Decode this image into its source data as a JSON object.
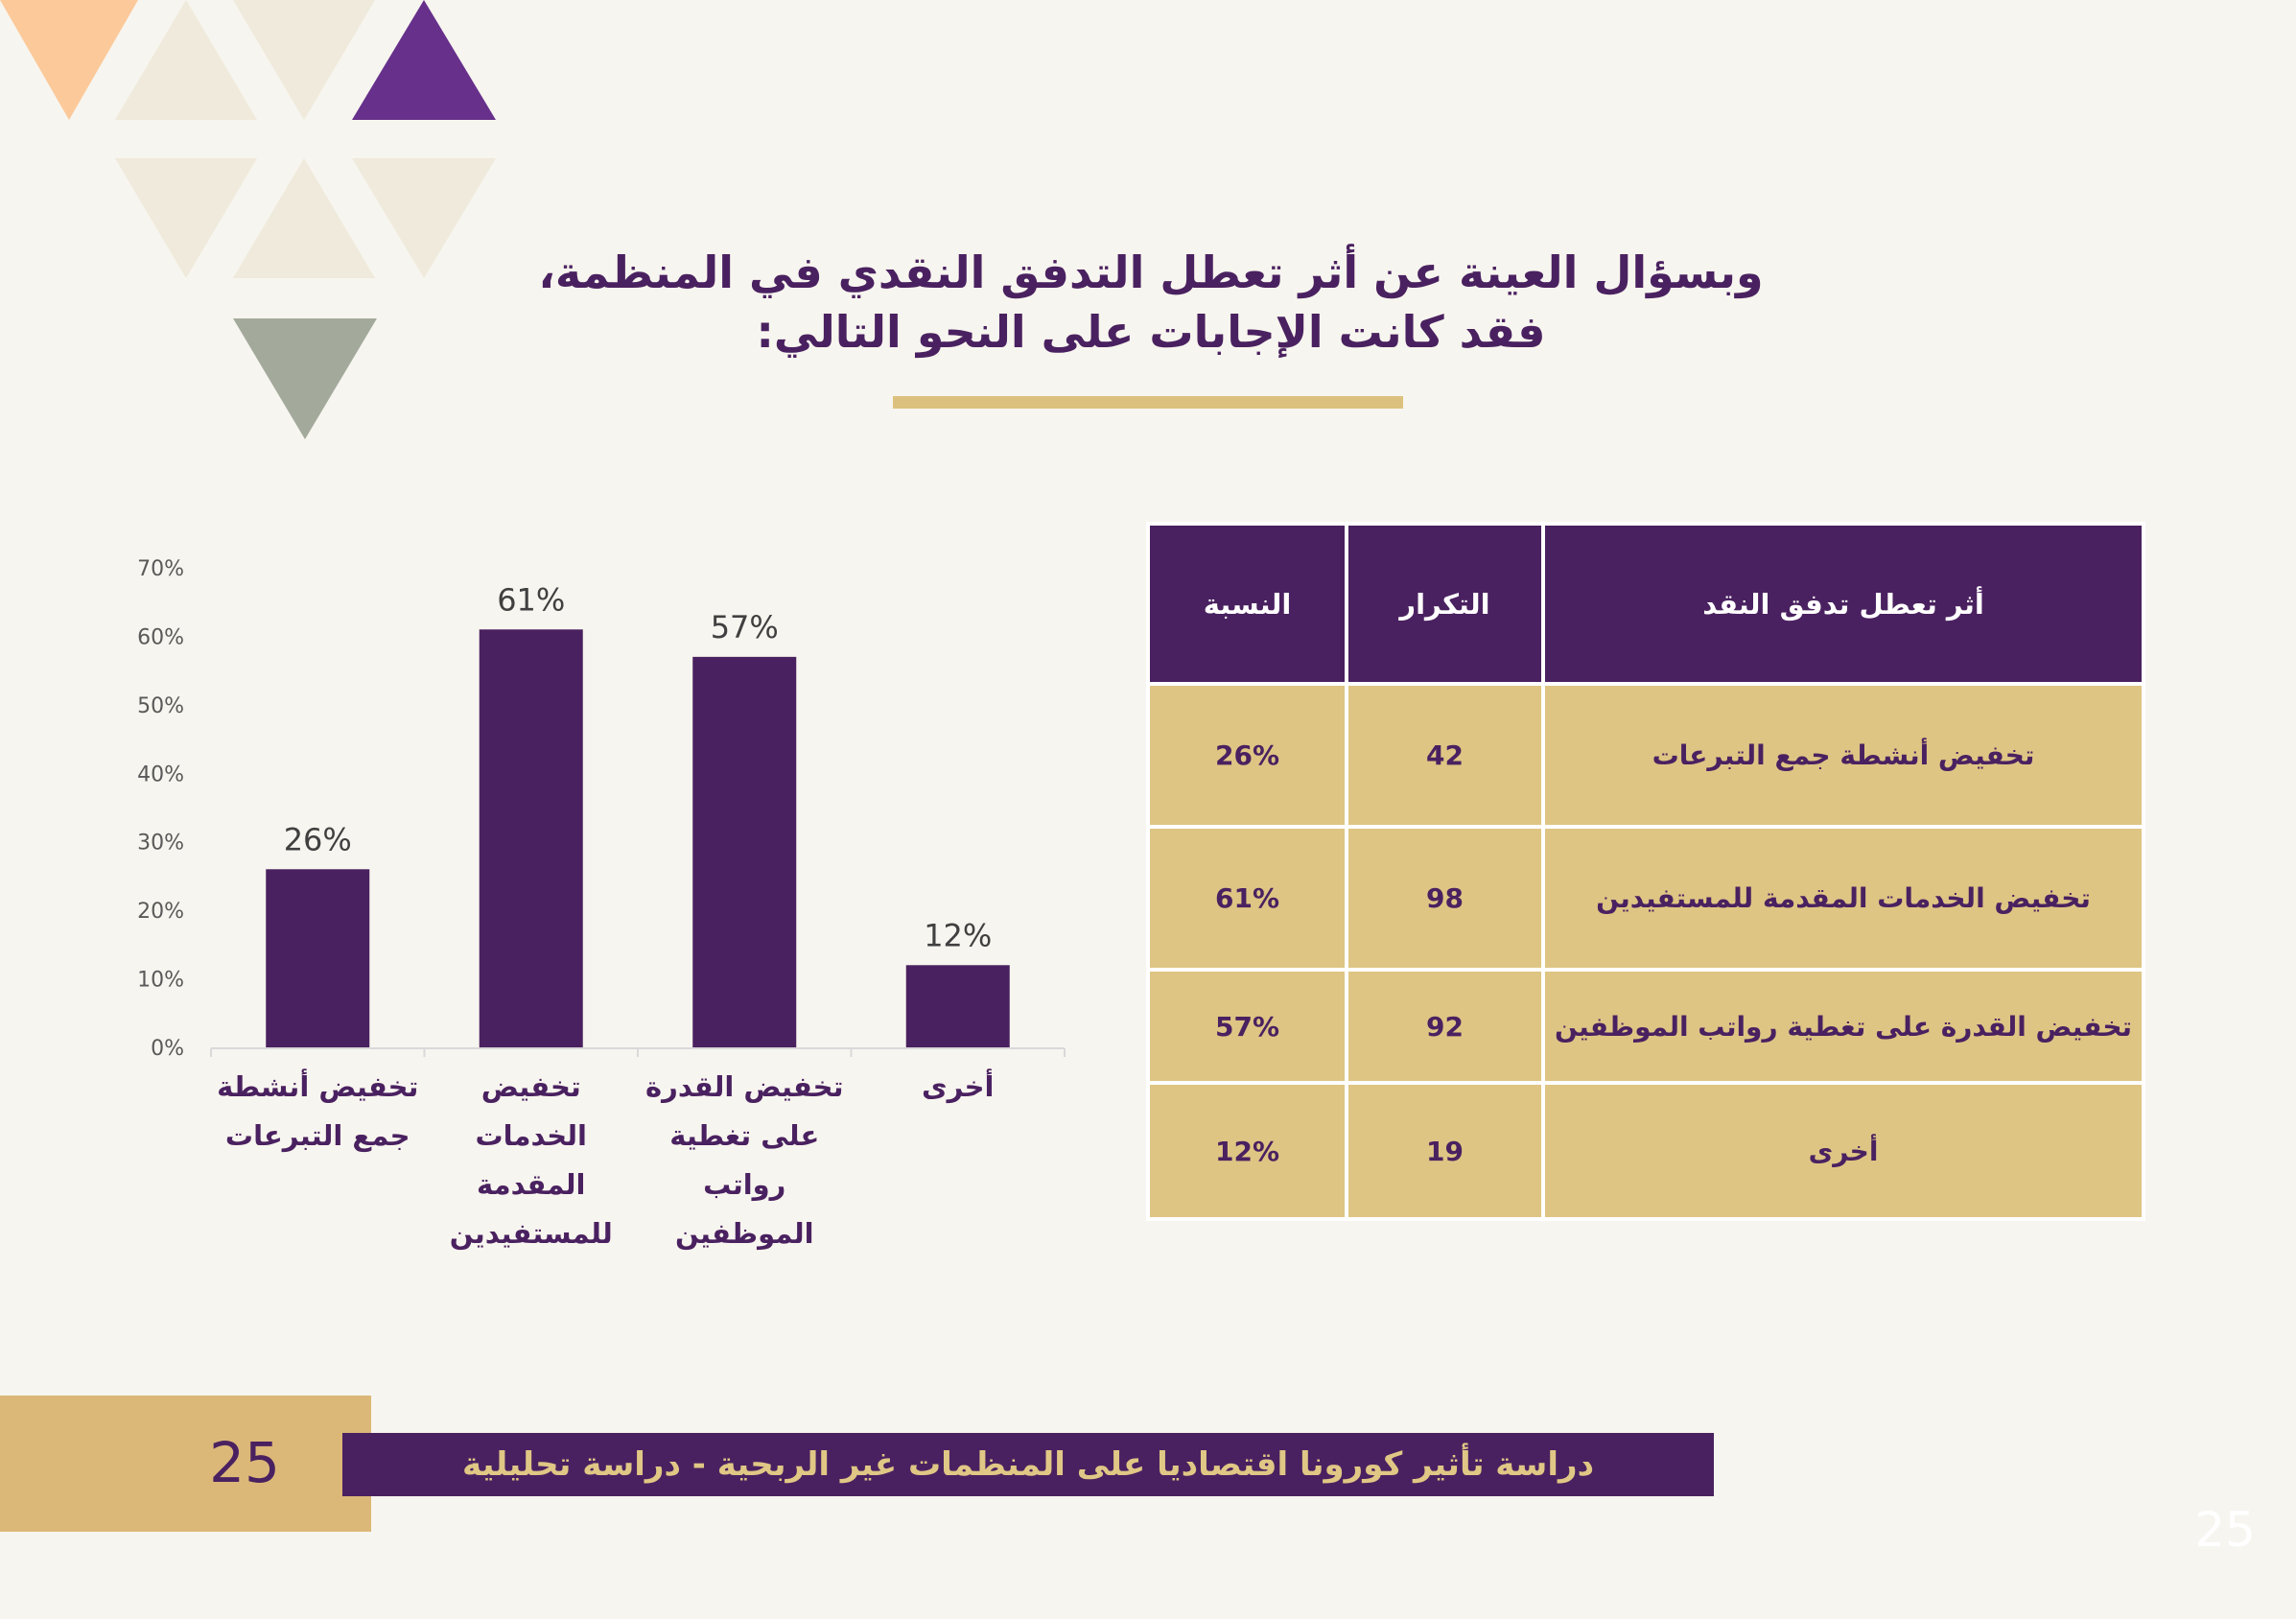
{
  "colors": {
    "background": "#f7f5ef",
    "purple": "#4a2160",
    "gold": "#dec584",
    "footer_gold": "#dbb878",
    "underline_gold": "#dbc17d",
    "decor_peach": "#fcc99a",
    "decor_cream": "#efeadb",
    "decor_purple": "#66308b",
    "decor_sage": "#a3aa9c",
    "axis_text": "#595959",
    "grid_line": "#d9d9d9"
  },
  "title": {
    "line1": "وبسؤال العينة عن أثر تعطل التدفق النقدي في المنظمة،",
    "line2": "فقد كانت الإجابات على النحو التالي:"
  },
  "chart_data": {
    "type": "bar",
    "title": "",
    "xlabel": "",
    "ylabel": "",
    "categories": [
      [
        "تخفيض أنشطة",
        "جمع التبرعات"
      ],
      [
        "تخفيض الخدمات",
        "المقدمة",
        "للمستفيدين"
      ],
      [
        "تخفيض القدرة",
        "على تغطية",
        "رواتب الموظفين"
      ],
      [
        "أخرى"
      ]
    ],
    "values": [
      26,
      61,
      57,
      12
    ],
    "value_labels": [
      "26%",
      "61%",
      "57%",
      "12%"
    ],
    "yticks": [
      0,
      10,
      20,
      30,
      40,
      50,
      60,
      70
    ],
    "ytick_labels": [
      "0%",
      "10%",
      "20%",
      "30%",
      "40%",
      "50%",
      "60%",
      "70%"
    ],
    "ylim": [
      0,
      70
    ],
    "grid": false,
    "legend": "none",
    "bar_color": "#4a2160"
  },
  "table": {
    "headers": [
      "أثر تعطل تدفق النقد",
      "التكرار",
      "النسبة"
    ],
    "rows": [
      [
        "تخفيض أنشطة جمع التبرعات",
        "42",
        "26%"
      ],
      [
        "تخفيض الخدمات المقدمة للمستفيدين",
        "98",
        "61%"
      ],
      [
        "تخفيض القدرة على تغطية رواتب الموظفين",
        "92",
        "57%"
      ],
      [
        "أخرى",
        "19",
        "12%"
      ]
    ]
  },
  "footer": {
    "page_number": "25",
    "title": "دراسة تأثير كورونا اقتصاديا على المنظمات غير الربحية - دراسة تحليلية",
    "corner_page_number": "25"
  }
}
